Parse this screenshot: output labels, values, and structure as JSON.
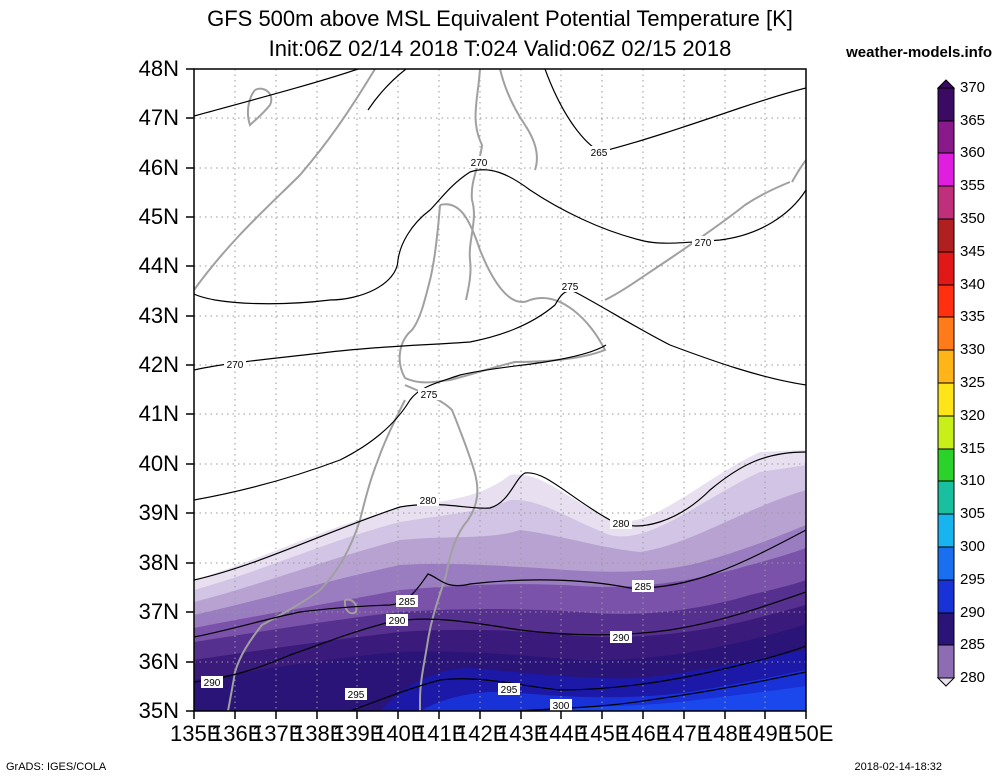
{
  "header": {
    "title_line1": "GFS 500m above MSL Equivalent Potential Temperature [K]",
    "title_line2": "Init:06Z 02/14 2018 T:024 Valid:06Z 02/15 2018",
    "brand": "weather-models.info"
  },
  "axes": {
    "lat_labels": [
      "48N",
      "47N",
      "46N",
      "45N",
      "44N",
      "43N",
      "42N",
      "41N",
      "40N",
      "39N",
      "38N",
      "37N",
      "36N",
      "35N"
    ],
    "lon_labels": [
      "135E",
      "136E",
      "137E",
      "138E",
      "139E",
      "140E",
      "141E",
      "142E",
      "143E",
      "144E",
      "145E",
      "146E",
      "147E",
      "148E",
      "149E",
      "150E"
    ]
  },
  "contour_labels": [
    "265",
    "270",
    "270",
    "270",
    "275",
    "275",
    "280",
    "280",
    "285",
    "285",
    "290",
    "290",
    "290",
    "295",
    "295",
    "300"
  ],
  "colorbar": {
    "labels": [
      "370",
      "365",
      "360",
      "355",
      "350",
      "345",
      "340",
      "335",
      "330",
      "325",
      "320",
      "315",
      "310",
      "305",
      "300",
      "295",
      "290",
      "285",
      "280"
    ],
    "colors": [
      "#3b0a63",
      "#8a1a8a",
      "#e01ee0",
      "#c0307a",
      "#b02020",
      "#e01818",
      "#ff3010",
      "#ff7a18",
      "#ffb418",
      "#ffe418",
      "#c8f018",
      "#2ad22a",
      "#18c0a0",
      "#18b4f0",
      "#1870f0",
      "#1832d8",
      "#2a1478",
      "#8e6cb4",
      "#e8e0f0"
    ]
  },
  "footer": {
    "left": "GrADS: IGES/COLA",
    "right": "2018-02-14-18:32"
  }
}
